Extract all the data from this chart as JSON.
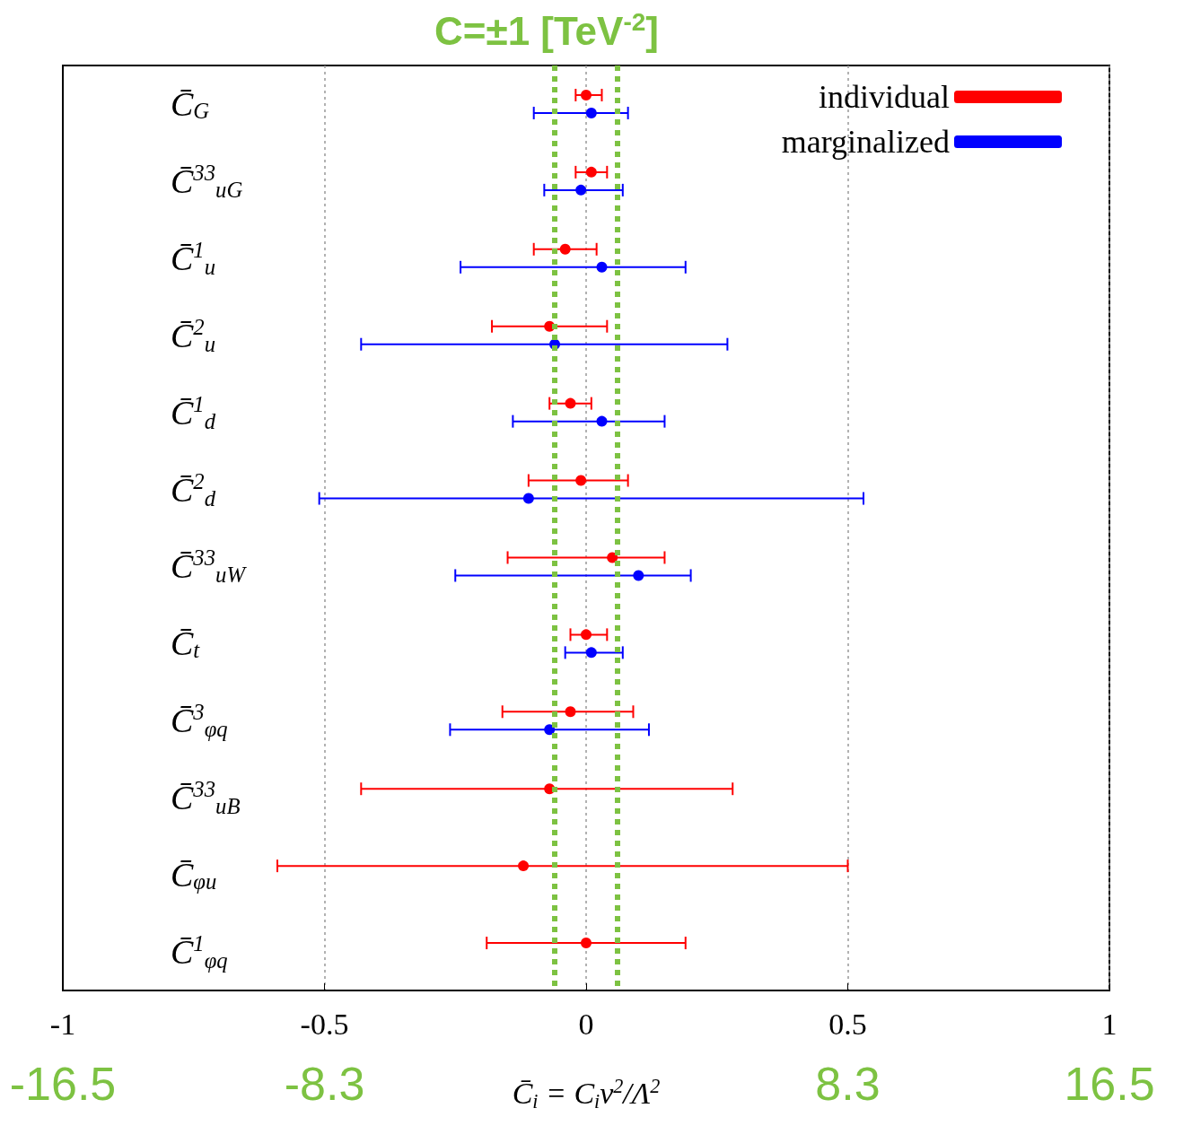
{
  "chart_data": {
    "type": "scatter",
    "orientation": "horizontal",
    "categories": [
      "C̄$_{G}$",
      "C̄$^{33}$$_{uG}$",
      "C̄$^{1}$$_{u}$",
      "C̄$^{2}$$_{u}$",
      "C̄$^{1}$$_{d}$",
      "C̄$^{2}$$_{d}$",
      "C̄$^{33}$$_{uW}$",
      "C̄$_{t}$",
      "C̄$^{3}$$_{φq}$",
      "C̄$^{33}$$_{uB}$",
      "C̄$_{φu}$",
      "C̄$^{1}$$_{φq}$"
    ],
    "series": [
      {
        "name": "individual",
        "color": "#ff0000",
        "values": [
          0.0,
          0.01,
          -0.04,
          -0.07,
          -0.03,
          -0.01,
          0.05,
          0.0,
          -0.03,
          -0.07,
          -0.12,
          0.0
        ],
        "errors": [
          [
            -0.02,
            0.03
          ],
          [
            -0.02,
            0.04
          ],
          [
            -0.1,
            0.02
          ],
          [
            -0.18,
            0.04
          ],
          [
            -0.07,
            0.01
          ],
          [
            -0.11,
            0.08
          ],
          [
            -0.15,
            0.15
          ],
          [
            -0.03,
            0.04
          ],
          [
            -0.16,
            0.09
          ],
          [
            -0.43,
            0.28
          ],
          [
            -0.59,
            0.5
          ],
          [
            -0.19,
            0.19
          ]
        ]
      },
      {
        "name": "marginalized",
        "color": "#0000ff",
        "values": [
          0.01,
          -0.01,
          0.03,
          -0.06,
          0.03,
          -0.11,
          0.1,
          0.01,
          -0.07,
          null,
          null,
          null
        ],
        "errors": [
          [
            -0.1,
            0.08
          ],
          [
            -0.08,
            0.07
          ],
          [
            -0.24,
            0.19
          ],
          [
            -0.43,
            0.27
          ],
          [
            -0.14,
            0.15
          ],
          [
            -0.51,
            0.53
          ],
          [
            -0.25,
            0.2
          ],
          [
            -0.04,
            0.07
          ],
          [
            -0.26,
            0.12
          ],
          null,
          null,
          null
        ]
      }
    ],
    "xlim": [
      -1,
      1
    ],
    "xticks": [
      -1,
      -0.5,
      0,
      0.5,
      1
    ],
    "x2lim": [
      -16.5,
      16.5
    ],
    "x2ticks": [
      -16.5,
      {
        "value": -8.25,
        "label": "-8.3"
      },
      {
        "value": 8.25,
        "label": "8.3"
      },
      16.5
    ],
    "xlabel": "C̄$_{i}$ = C$_{i}$v$^{2}$/Λ$^{2}$",
    "ref_lines": [
      {
        "axis": "x",
        "value": -0.06,
        "color": "#7dc242",
        "line_style": "dashed"
      },
      {
        "axis": "x",
        "value": 0.06,
        "color": "#7dc242",
        "line_style": "dashed"
      }
    ],
    "annotations": [
      "C=±1 [TeV$^{-2}$]"
    ],
    "grid": "x",
    "legend": "top right",
    "marker": "circle"
  }
}
